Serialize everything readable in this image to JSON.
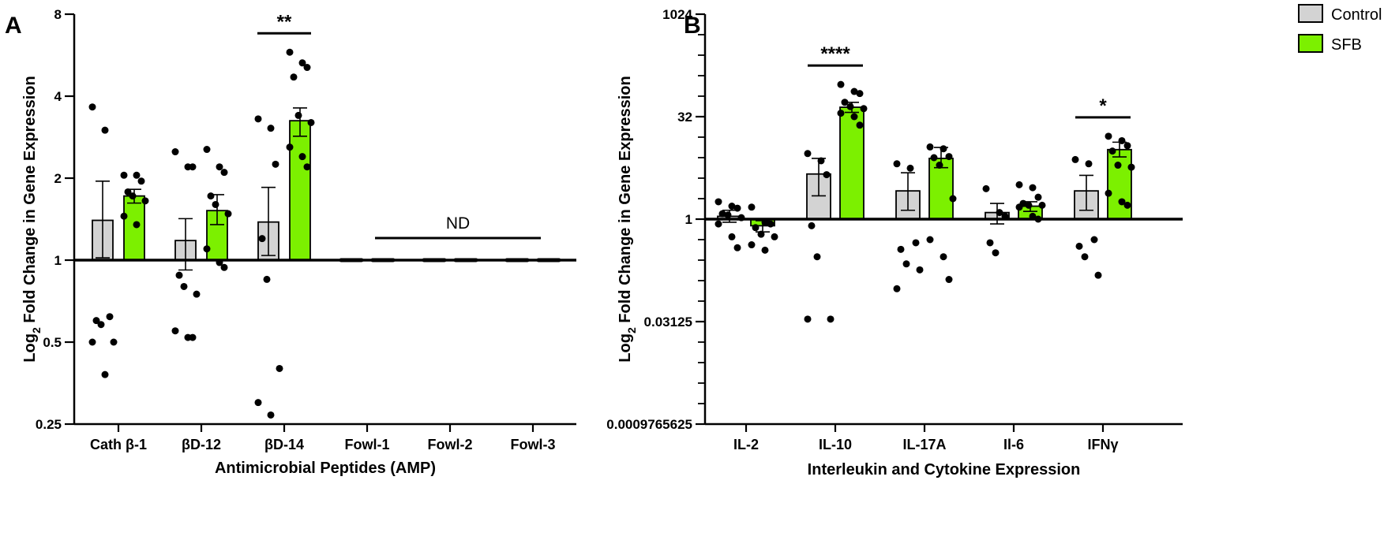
{
  "colors": {
    "control": "#d3d3d3",
    "sfb": "#7cf000",
    "ink": "#000000"
  },
  "legend": {
    "control": "Control",
    "sfb": "SFB"
  },
  "chart_data": [
    {
      "panel": "A",
      "type": "bar",
      "yscale": "log2",
      "ylabel_main": "Log",
      "ylabel_sub": "2",
      "ylabel_rest": " Fold Change in Gene Expression",
      "xlabel": "Antimicrobial Peptides (AMP)",
      "ylim": [
        0.25,
        8
      ],
      "baseline": 1,
      "yticks": [
        {
          "v": 0.25,
          "label": "0.25"
        },
        {
          "v": 0.5,
          "label": "0.5"
        },
        {
          "v": 1,
          "label": "1"
        },
        {
          "v": 2,
          "label": "2"
        },
        {
          "v": 4,
          "label": "4"
        },
        {
          "v": 8,
          "label": "8"
        }
      ],
      "categories": [
        "Cath β-1",
        "βD-12",
        "βD-14",
        "Fowl-1",
        "Fowl-2",
        "Fowl-3"
      ],
      "series": [
        {
          "name": "Control",
          "values": [
            1.4,
            1.18,
            1.38,
            1,
            1,
            1
          ],
          "err": [
            [
              1.02,
              1.95
            ],
            [
              0.92,
              1.42
            ],
            [
              1.04,
              1.85
            ],
            null,
            null,
            null
          ],
          "points": [
            [
              3.65,
              3.0,
              0.62,
              0.6,
              0.58,
              0.5,
              0.5,
              0.38
            ],
            [
              2.5,
              2.2,
              2.2,
              0.88,
              0.8,
              0.75,
              0.55,
              0.52,
              0.52
            ],
            [
              3.3,
              3.05,
              2.25,
              1.2,
              0.85,
              0.4,
              0.3,
              0.27
            ],
            [],
            [],
            []
          ]
        },
        {
          "name": "SFB",
          "values": [
            1.72,
            1.52,
            3.25,
            1,
            1,
            1
          ],
          "err": [
            [
              1.62,
              1.82
            ],
            [
              1.35,
              1.74
            ],
            [
              2.85,
              3.62
            ],
            null,
            null,
            null
          ],
          "points": [
            [
              2.05,
              2.05,
              1.95,
              1.78,
              1.72,
              1.65,
              1.45,
              1.35
            ],
            [
              2.55,
              2.2,
              2.1,
              1.72,
              1.6,
              1.48,
              1.1,
              0.98,
              0.94
            ],
            [
              5.8,
              5.3,
              5.1,
              4.7,
              3.4,
              3.2,
              2.6,
              2.4,
              2.2
            ],
            [],
            [],
            []
          ]
        }
      ],
      "nd_category_indices": [
        3,
        4,
        5
      ],
      "annotations": [
        {
          "type": "sig",
          "text": "**",
          "category": 2
        },
        {
          "type": "nd",
          "text": "ND",
          "from": 3,
          "to": 5
        }
      ]
    },
    {
      "panel": "B",
      "type": "bar",
      "yscale": "log2",
      "ylabel_main": "Log",
      "ylabel_sub": "2",
      "ylabel_rest": " Fold Change in Gene Expression",
      "xlabel": "Interleukin and Cytokine Expression",
      "ylim": [
        0.0009765625,
        1024
      ],
      "baseline": 1,
      "yticks": [
        {
          "v": 0.0009765625,
          "label": "0.0009765625"
        },
        {
          "v": 0.03125,
          "label": "0.03125"
        },
        {
          "v": 1,
          "label": "1"
        },
        {
          "v": 32,
          "label": "32"
        },
        {
          "v": 1024,
          "label": "1024"
        }
      ],
      "minor_yticks_log2": [
        -9,
        -8,
        -7,
        -6,
        -4,
        -3,
        -2,
        -1,
        1,
        2,
        3,
        4,
        6,
        7,
        8,
        9
      ],
      "categories": [
        "IL-2",
        "IL-10",
        "IL-17A",
        "Il-6",
        "IFNγ"
      ],
      "series": [
        {
          "name": "Control",
          "values": [
            1.1,
            4.6,
            2.6,
            1.25,
            2.6
          ],
          "err": [
            [
              0.9,
              1.35
            ],
            [
              2.2,
              7.8
            ],
            [
              1.35,
              4.8
            ],
            [
              0.85,
              1.7
            ],
            [
              1.35,
              4.4
            ]
          ],
          "points": [
            [
              1.8,
              1.55,
              1.45,
              1.2,
              1.15,
              1.05,
              0.85,
              0.55,
              0.38
            ],
            [
              9.2,
              7.2,
              4.5,
              0.8,
              0.28,
              0.034,
              0.034
            ],
            [
              6.5,
              5.6,
              0.45,
              0.36,
              0.22,
              0.18,
              0.095
            ],
            [
              2.8,
              1.25,
              1.1,
              0.45,
              0.32
            ],
            [
              7.5,
              6.5,
              0.5,
              0.4,
              0.28,
              0.15
            ]
          ]
        },
        {
          "name": "SFB",
          "values": [
            0.8,
            44,
            7.8,
            1.55,
            10.5
          ],
          "err": [
            [
              0.65,
              0.95
            ],
            [
              37,
              52
            ],
            [
              5.7,
              11.3
            ],
            [
              1.3,
              1.8
            ],
            [
              8.2,
              13.5
            ]
          ],
          "points": [
            [
              1.5,
              0.9,
              0.85,
              0.75,
              0.6,
              0.55,
              0.42,
              0.35
            ],
            [
              95,
              75,
              70,
              52,
              45,
              42,
              36,
              32,
              24
            ],
            [
              11.5,
              10.8,
              8.3,
              8.0,
              6.2,
              2.0,
              0.5,
              0.28,
              0.13
            ],
            [
              3.2,
              2.9,
              2.1,
              1.7,
              1.6,
              1.6,
              1.5,
              1.1,
              1.0
            ],
            [
              16.5,
              14.2,
              12.0,
              10.0,
              6.2,
              5.8,
              2.4,
              1.8,
              1.6
            ]
          ]
        }
      ],
      "nd_category_indices": [],
      "annotations": [
        {
          "type": "sig",
          "text": "****",
          "category": 1
        },
        {
          "type": "sig",
          "text": "*",
          "category": 4
        }
      ]
    }
  ]
}
